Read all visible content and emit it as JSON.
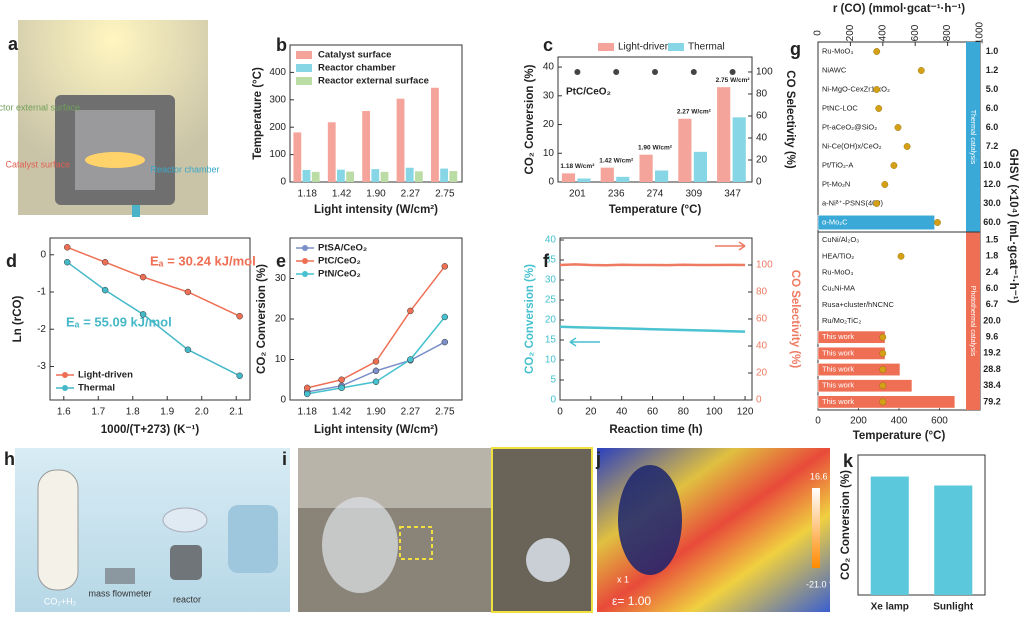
{
  "chart_data": [
    {
      "type": "bar",
      "label": "b",
      "categories": [
        "1.18",
        "1.42",
        "1.90",
        "2.27",
        "2.75"
      ],
      "xlabel": "Light intensity (W/cm²)",
      "ylabel": "Temperature (°C)",
      "ylim": [
        0,
        500
      ],
      "yticks": [
        0,
        100,
        200,
        300,
        400
      ],
      "legend": "upper left",
      "series": [
        {
          "name": "Catalyst surface",
          "color": "#f4a49a",
          "values": [
            181,
            218,
            259,
            304,
            344
          ]
        },
        {
          "name": "Reactor chamber",
          "color": "#86d6e6",
          "values": [
            44,
            45,
            47,
            52,
            49
          ]
        },
        {
          "name": "Reactor external surface",
          "color": "#bcdca6",
          "values": [
            37,
            38,
            37,
            39,
            40
          ]
        }
      ]
    },
    {
      "type": "bar",
      "label": "c",
      "categories": [
        "201",
        "236",
        "274",
        "309",
        "347"
      ],
      "xlabel": "Temperature (°C)",
      "ylabel": "CO₂ Conversion (%)",
      "y2label": "CO Selectivity (%)",
      "ylim": [
        0,
        43.5
      ],
      "yticks": [
        0,
        10,
        20,
        30,
        40
      ],
      "y2lim": [
        0,
        113.6
      ],
      "y2ticks": [
        0,
        20,
        40,
        60,
        80,
        100
      ],
      "legend": "upper center",
      "annotations": [
        {
          "text": "PtC/CeO₂",
          "color": "#222"
        }
      ],
      "series": [
        {
          "name": "Light-driven",
          "color": "#f4a49a",
          "values": [
            3,
            5,
            9.5,
            22,
            33
          ],
          "bar_labels": [
            "1.18 W/cm²",
            "1.42 W/cm²",
            "1.90 W/cm²",
            "2.27 W/cm²",
            "2.75 W/cm²"
          ]
        },
        {
          "name": "Thermal",
          "color": "#86d6e6",
          "values": [
            1.2,
            1.8,
            4,
            10.5,
            22.5
          ]
        },
        {
          "axis": "y2",
          "marker": "dot",
          "color": "#444",
          "values": [
            100,
            100,
            100,
            100,
            100
          ]
        }
      ]
    },
    {
      "type": "line",
      "label": "d",
      "x": [
        1.61,
        1.72,
        1.83,
        1.96,
        2.11
      ],
      "xlim": [
        1.56,
        2.14
      ],
      "xticks": [
        1.6,
        1.7,
        1.8,
        1.9,
        {
          "value": 2,
          "label": "2.0"
        },
        2.1
      ],
      "ylim": [
        -3.9,
        0.45
      ],
      "yticks": [
        0,
        -1,
        -2,
        -3
      ],
      "xlabel": "1000/(T+273) (K⁻¹)",
      "ylabel": "Ln (rCO)",
      "legend": "lower left",
      "markers": true,
      "annotations": [
        {
          "text": "Eₐ = 30.24 kJ/mol",
          "color": "#ef6f55"
        },
        {
          "text": "Eₐ = 55.09 kJ/mol",
          "color": "#45b8c8"
        }
      ],
      "series": [
        {
          "name": "Light-driven",
          "color": "#ef6f55",
          "values": [
            0.2,
            -0.2,
            -0.6,
            -1.0,
            -1.65
          ]
        },
        {
          "name": "Thermal",
          "color": "#45b8c8",
          "values": [
            -0.2,
            -0.95,
            -1.6,
            -2.55,
            -3.25
          ]
        }
      ]
    },
    {
      "type": "line",
      "label": "e",
      "categories": [
        "1.18",
        "1.42",
        "1.90",
        "2.27",
        "2.75"
      ],
      "xlabel": "Light intensity (W/cm²)",
      "ylabel": "CO₂ Conversion (%)",
      "ylim": [
        0,
        40
      ],
      "yticks": [
        0,
        10,
        20,
        30
      ],
      "legend": "upper left",
      "markers": true,
      "series": [
        {
          "name": "PtSA/CeO₂",
          "color": "#7b8fc9",
          "values": [
            2,
            3.5,
            7.2,
            9.8,
            14.3
          ]
        },
        {
          "name": "PtC/CeO₂",
          "color": "#ef6f55",
          "values": [
            3,
            5,
            9.5,
            22,
            33
          ]
        },
        {
          "name": "PtN/CeO₂",
          "color": "#45c1cf",
          "values": [
            1.5,
            3,
            4.5,
            10,
            20.5
          ]
        }
      ]
    },
    {
      "type": "line",
      "label": "f",
      "x": [
        0,
        10,
        20,
        30,
        40,
        50,
        60,
        70,
        80,
        90,
        100,
        110,
        120
      ],
      "xlim": [
        0,
        124.5
      ],
      "xticks": [
        0,
        20,
        40,
        60,
        80,
        100,
        120
      ],
      "ylim": [
        0,
        40.5
      ],
      "yticks": [
        0,
        5,
        10,
        15,
        20,
        25,
        30,
        35,
        40
      ],
      "y2lim": [
        0,
        120
      ],
      "y2ticks": [
        0,
        20,
        40,
        60,
        80,
        100
      ],
      "xlabel": "Reaction time (h)",
      "ylabel": "CO₂ Conversion (%)",
      "y2label": "CO Selectivity (%)",
      "ylabel_color": "#45c1cf",
      "y2label_color": "#ef7a62",
      "series": [
        {
          "color": "#4cc3d1",
          "values": [
            18.3,
            18.2,
            18.1,
            18,
            17.9,
            17.8,
            17.7,
            17.6,
            17.5,
            17.4,
            17.3,
            17.2,
            17.1
          ]
        },
        {
          "axis": "y2",
          "color": "#ef7a62",
          "values": [
            100,
            100.5,
            100,
            99.8,
            100.2,
            100,
            100,
            99.9,
            100.2,
            100,
            100,
            100.1,
            100
          ]
        }
      ]
    },
    {
      "type": "hbar",
      "label": "g",
      "xlabel_top": "r (CO) (mmol·gcat⁻¹·h⁻¹)",
      "xlim": [
        0,
        1000
      ],
      "xticks": [
        0,
        200,
        400,
        600,
        800,
        1000
      ],
      "xlabel_bottom": "Temperature (°C)",
      "x2lim": [
        0,
        800
      ],
      "x2ticks": [
        0,
        200,
        400,
        600
      ],
      "y2label": "GHSV (×10⁴) (mL·gcat⁻¹·h⁻¹)",
      "dot_color": "#d4a017",
      "groups": [
        {
          "name": "Thermal catalysis",
          "color": "#3aa9d8",
          "categories": [
            "Ru-MoO₃",
            "NiAWC",
            "Ni-MgO-CexZr1-xO₂",
            "PtNC-LOC",
            "Pt-aCeO₂@SiO₂",
            "Ni-Ce(OH)x/CeO₂",
            "Pt/TiO₂-A",
            "Pt-Mo₂N",
            "a-Niᵟ⁺-PSNS(400)",
            "α-Mo₂C"
          ],
          "ghsv": [
            "1.0",
            "1.2",
            "5.0",
            "6.0",
            "6.0",
            "7.2",
            "10.0",
            "12.0",
            "30.0",
            "60.0"
          ],
          "values": [
            null,
            null,
            null,
            null,
            null,
            null,
            null,
            null,
            null,
            720
          ],
          "temperature": [
            290,
            510,
            290,
            300,
            395,
            440,
            375,
            330,
            290,
            590
          ]
        },
        {
          "name": "Photothermal catalysis",
          "color": "#ef6f55",
          "categories": [
            "CuNi/Al₂O₃",
            "HEA/TiO₂",
            "Ru-MoO₃",
            "Cu₁Ni-MA",
            "Rusa+cluster/hNCNC",
            "Ru/Mo₂TiC₂",
            "This work",
            "This work",
            "This work",
            "This work",
            "This work"
          ],
          "ghsv": [
            "1.5",
            "1.8",
            "2.4",
            "6.0",
            "6.7",
            "20.0",
            "9.6",
            "19.2",
            "28.8",
            "38.4",
            "79.2"
          ],
          "values": [
            null,
            null,
            null,
            null,
            null,
            null,
            414,
            414,
            506,
            580,
            845
          ],
          "temperature": [
            null,
            410,
            null,
            null,
            null,
            null,
            320,
            320,
            320,
            320,
            320
          ]
        }
      ]
    },
    {
      "type": "bar",
      "label": "k",
      "categories": [
        "Xe lamp",
        "Sunlight"
      ],
      "values": [
        33,
        30.5
      ],
      "color": "#5cc8dc",
      "ylim": [
        0,
        39
      ],
      "ylabel": "CO₂ Conversion (%)"
    }
  ],
  "figures": {
    "a": {
      "label": "a",
      "texts": [
        "Reactor external surface",
        "Catalyst surface",
        "Reactor chamber"
      ]
    },
    "h": {
      "label": "h",
      "texts": [
        "CO₂+H₂",
        "mass flowmeter",
        "reactor"
      ]
    },
    "i": {
      "label": "i"
    },
    "j": {
      "label": "j",
      "texts": [
        "16.6 °C",
        "-21.0 °C",
        "x 1",
        "ε= 1.00"
      ]
    }
  }
}
